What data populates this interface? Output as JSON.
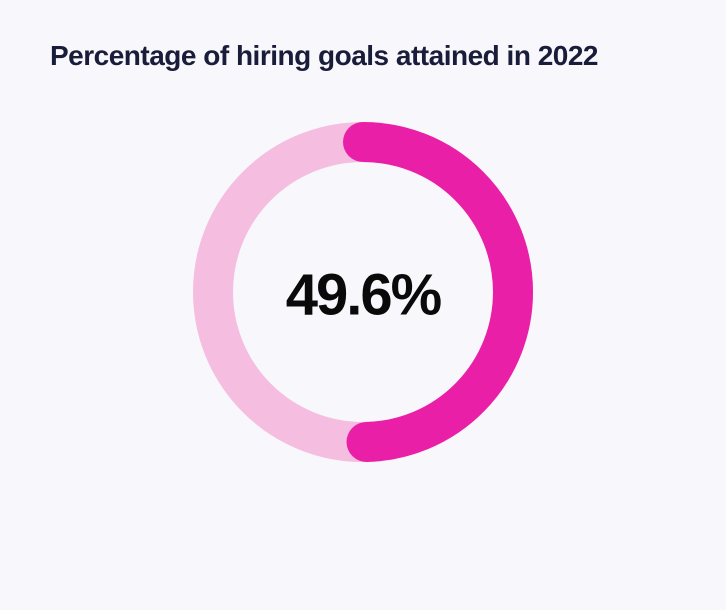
{
  "chart": {
    "type": "donut",
    "title": "Percentage of hiring goals attained in 2022",
    "value": 49.6,
    "value_label": "49.6%",
    "title_color": "#1a1d3a",
    "title_fontsize": 28,
    "value_color": "#0a0a0a",
    "value_fontsize": 58,
    "background_color": "#f8f7fb",
    "track_color": "#f5bde0",
    "progress_color": "#e91fa8",
    "diameter": 340,
    "stroke_width": 40,
    "start_angle": 0
  }
}
